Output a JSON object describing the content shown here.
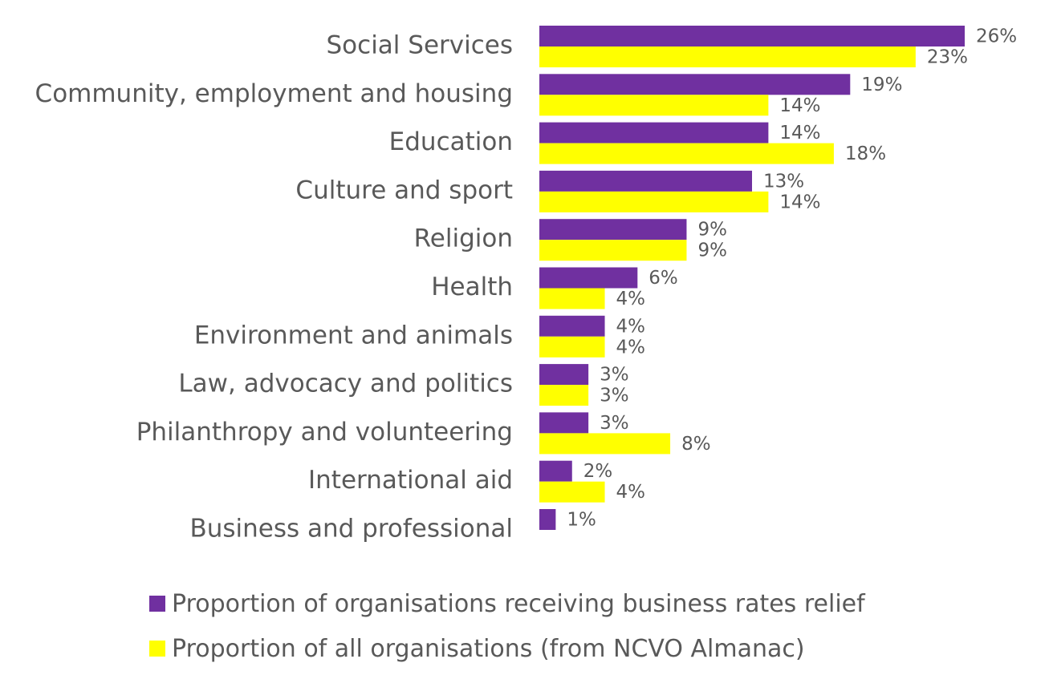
{
  "chart_data": {
    "type": "bar",
    "orientation": "horizontal",
    "categories": [
      "Social Services",
      "Community, employment and housing",
      "Education",
      "Culture and sport",
      "Religion",
      "Health",
      "Environment and animals",
      "Law, advocacy and politics",
      "Philanthropy and volunteering",
      "International aid",
      "Business and professional"
    ],
    "series": [
      {
        "name": "Proportion of organisations receiving business rates relief",
        "color": "#7030A0",
        "values": [
          26,
          19,
          14,
          13,
          9,
          6,
          4,
          3,
          3,
          2,
          1
        ],
        "labels": [
          "26%",
          "19%",
          "14%",
          "13%",
          "9%",
          "6%",
          "4%",
          "3%",
          "3%",
          "2%",
          "1%"
        ]
      },
      {
        "name": "Proportion of all organisations (from NCVO Almanac)",
        "color": "#FFFF00",
        "values": [
          23,
          14,
          18,
          14,
          9,
          4,
          4,
          3,
          8,
          4,
          null
        ],
        "labels": [
          "23%",
          "14%",
          "18%",
          "14%",
          "9%",
          "4%",
          "4%",
          "3%",
          "8%",
          "4%",
          ""
        ]
      }
    ],
    "value_unit": "%",
    "xlim": [
      0,
      26
    ],
    "grid": false,
    "legend_position": "bottom"
  }
}
